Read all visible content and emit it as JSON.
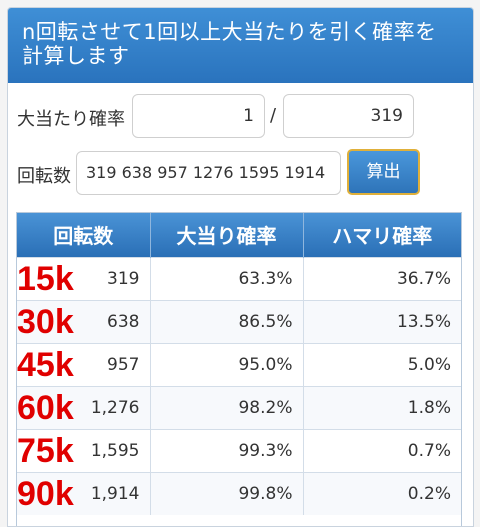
{
  "header": {
    "title_line1": "n回転させて1回以上大当たりを引く確率を",
    "title_line2": "計算します"
  },
  "form": {
    "probability_label": "大当たり確率",
    "numerator": "1",
    "slash": "/",
    "denominator": "319",
    "spins_label": "回転数",
    "spins_value": "319 638 957 1276 1595 1914",
    "calc_button": "算出"
  },
  "table": {
    "headers": [
      "回転数",
      "大当り確率",
      "ハマリ確率"
    ],
    "rows": [
      {
        "mark": "15k",
        "spins": "319",
        "hit": "63.3%",
        "miss": "36.7%"
      },
      {
        "mark": "30k",
        "spins": "638",
        "hit": "86.5%",
        "miss": "13.5%"
      },
      {
        "mark": "45k",
        "spins": "957",
        "hit": "95.0%",
        "miss": "5.0%"
      },
      {
        "mark": "60k",
        "spins": "1,276",
        "hit": "98.2%",
        "miss": "1.8%"
      },
      {
        "mark": "75k",
        "spins": "1,595",
        "hit": "99.3%",
        "miss": "0.7%"
      },
      {
        "mark": "90k",
        "spins": "1,914",
        "hit": "99.8%",
        "miss": "0.2%"
      }
    ]
  },
  "colors": {
    "header_blue": "#2a73bd",
    "annotation_red": "#e00000",
    "button_border": "#e0b03a"
  }
}
